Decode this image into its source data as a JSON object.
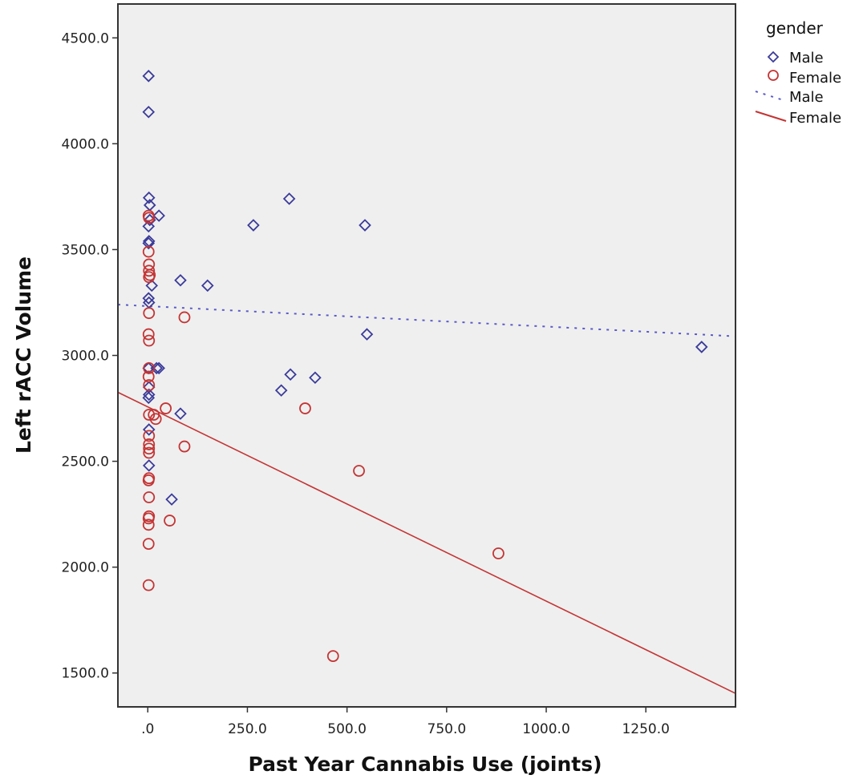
{
  "chart_data": {
    "type": "scatter",
    "xlabel": "Past Year Cannabis Use (joints)",
    "ylabel": "Left rACC Volume",
    "xlim": [
      -75,
      1475
    ],
    "ylim": [
      1340,
      4660
    ],
    "x_ticks": [
      ".0",
      "250.0",
      "500.0",
      "750.0",
      "1000.0",
      "1250.0"
    ],
    "x_tick_values": [
      0,
      250,
      500,
      750,
      1000,
      1250
    ],
    "y_ticks": [
      "1500.0",
      "2000.0",
      "2500.0",
      "3000.0",
      "3500.0",
      "4000.0",
      "4500.0"
    ],
    "y_tick_values": [
      1500,
      2000,
      2500,
      3000,
      3500,
      4000,
      4500
    ],
    "grid": false,
    "background_color": "#efefef",
    "legend": {
      "title": "gender",
      "position": "top-right",
      "entries": [
        {
          "label": "Male",
          "kind": "marker",
          "marker": "diamond",
          "color": "#3b3b9a"
        },
        {
          "label": "Female",
          "kind": "marker",
          "marker": "circle",
          "color": "#c43434"
        },
        {
          "label": "Male",
          "kind": "line",
          "style": "dotted",
          "color": "#5a5ac8"
        },
        {
          "label": "Female",
          "kind": "line",
          "style": "solid",
          "color": "#c43434"
        }
      ]
    },
    "series": [
      {
        "name": "Male",
        "marker": "diamond",
        "color": "#3b3b9a",
        "points": [
          [
            2,
            4320
          ],
          [
            2,
            4150
          ],
          [
            3,
            3745
          ],
          [
            5,
            3710
          ],
          [
            28,
            3660
          ],
          [
            5,
            3640
          ],
          [
            2,
            3610
          ],
          [
            3,
            3540
          ],
          [
            2,
            3530
          ],
          [
            10,
            3330
          ],
          [
            82,
            3355
          ],
          [
            150,
            3330
          ],
          [
            2,
            3270
          ],
          [
            3,
            3250
          ],
          [
            2,
            2940
          ],
          [
            22,
            2940
          ],
          [
            28,
            2940
          ],
          [
            3,
            2850
          ],
          [
            3,
            2815
          ],
          [
            2,
            2800
          ],
          [
            82,
            2725
          ],
          [
            3,
            2650
          ],
          [
            3,
            2480
          ],
          [
            60,
            2320
          ],
          [
            265,
            3615
          ],
          [
            355,
            3740
          ],
          [
            545,
            3615
          ],
          [
            550,
            3100
          ],
          [
            335,
            2835
          ],
          [
            358,
            2910
          ],
          [
            420,
            2895
          ],
          [
            1390,
            3040
          ]
        ]
      },
      {
        "name": "Female",
        "marker": "circle",
        "color": "#c43434",
        "points": [
          [
            2,
            3660
          ],
          [
            3,
            3650
          ],
          [
            2,
            3490
          ],
          [
            3,
            3430
          ],
          [
            3,
            3400
          ],
          [
            5,
            3380
          ],
          [
            3,
            3370
          ],
          [
            3,
            3200
          ],
          [
            2,
            3100
          ],
          [
            3,
            3070
          ],
          [
            92,
            3180
          ],
          [
            3,
            2940
          ],
          [
            2,
            2900
          ],
          [
            3,
            2860
          ],
          [
            3,
            2720
          ],
          [
            15,
            2720
          ],
          [
            20,
            2700
          ],
          [
            45,
            2750
          ],
          [
            3,
            2620
          ],
          [
            3,
            2580
          ],
          [
            3,
            2560
          ],
          [
            3,
            2540
          ],
          [
            92,
            2570
          ],
          [
            3,
            2420
          ],
          [
            2,
            2410
          ],
          [
            3,
            2330
          ],
          [
            3,
            2240
          ],
          [
            2,
            2230
          ],
          [
            2,
            2200
          ],
          [
            55,
            2220
          ],
          [
            2,
            2110
          ],
          [
            2,
            1915
          ],
          [
            395,
            2750
          ],
          [
            530,
            2455
          ],
          [
            465,
            1580
          ],
          [
            880,
            2065
          ]
        ]
      }
    ],
    "fit_lines": [
      {
        "name": "Male",
        "style": "dotted",
        "color": "#5a5ac8",
        "intercept": 3233,
        "slope": -0.0967
      },
      {
        "name": "Female",
        "style": "solid",
        "color": "#c43434",
        "intercept": 2757,
        "slope": -0.9175
      }
    ]
  }
}
